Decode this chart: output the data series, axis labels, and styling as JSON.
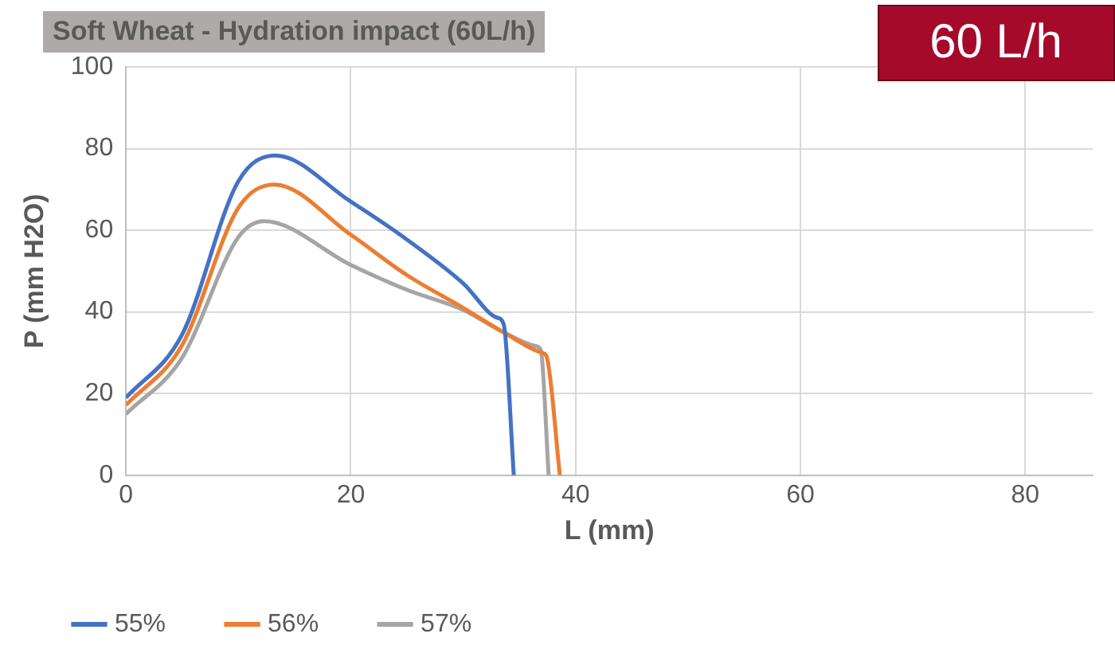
{
  "chart_data": {
    "type": "line",
    "title": "Soft Wheat - Hydration impact (60L/h)",
    "xlabel": "L (mm)",
    "ylabel": "P (mm H2O)",
    "annotations": [
      "60 L/h"
    ],
    "xlim": [
      0,
      86
    ],
    "xticks": [
      0,
      20,
      40,
      60,
      80
    ],
    "ylim": [
      0,
      100
    ],
    "yticks": [
      0,
      20,
      40,
      60,
      80,
      100
    ],
    "grid": true,
    "legend": "bottom",
    "marker": "none",
    "line_style": "solid",
    "series": [
      {
        "name": "55%",
        "color": "#4472c4",
        "x": [
          0,
          5,
          10,
          13.3,
          20,
          25,
          30,
          33,
          33.6,
          34.5
        ],
        "values": [
          19,
          34.5,
          72,
          78.3,
          67,
          57.7,
          47,
          38.6,
          37,
          0
        ]
      },
      {
        "name": "56%",
        "color": "#ed7d31",
        "x": [
          0,
          5,
          10,
          13.2,
          20,
          25,
          30,
          33.6,
          37,
          37.4,
          38.6
        ],
        "values": [
          17.2,
          31.9,
          65.5,
          71.2,
          58.9,
          49,
          41,
          35,
          30,
          29.2,
          0
        ]
      },
      {
        "name": "57%",
        "color": "#a5a5a5",
        "x": [
          0,
          5,
          10,
          12.3,
          20,
          25,
          30,
          33.6,
          36.5,
          36.9,
          37.6
        ],
        "values": [
          15,
          28.8,
          58.3,
          62.2,
          51.5,
          45.4,
          40.5,
          35,
          31.6,
          30.7,
          0
        ]
      }
    ]
  }
}
